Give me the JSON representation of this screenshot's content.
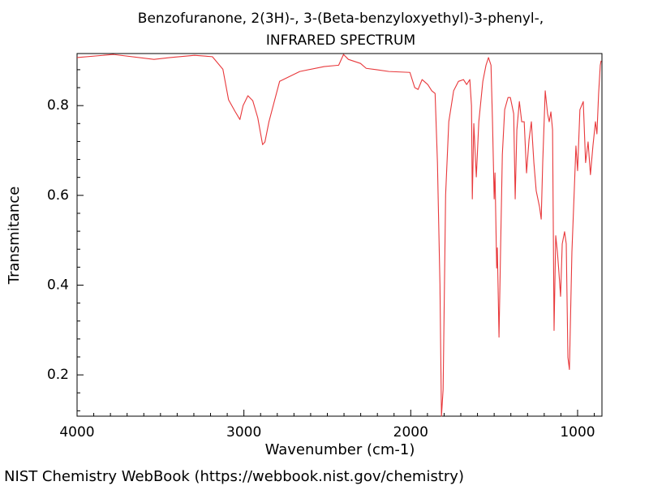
{
  "chart_data": {
    "type": "line",
    "title": "Benzofuranone, 2(3H)-, 3-(Beta-benzyloxyethyl)-3-phenyl-,",
    "subtitle": "INFRARED SPECTRUM",
    "x_label": "Wavenumber (cm-1)",
    "y_label": "Transmitance",
    "color": "#e8383b",
    "xlim": [
      4000,
      854
    ],
    "ylim": [
      0.108,
      0.916
    ],
    "xticks": [
      4000,
      3000,
      2000,
      1000
    ],
    "yticks": [
      0.2,
      0.4,
      0.6,
      0.8
    ],
    "xminorticks": [
      3900,
      3800,
      3700,
      3600,
      3500,
      3400,
      3300,
      3200,
      3100,
      2900,
      2800,
      2700,
      2600,
      2500,
      2400,
      2300,
      2200,
      2100,
      1900,
      1800,
      1700,
      1600,
      1500,
      1400,
      1300,
      1200,
      1100,
      900
    ],
    "yminorticks": [
      0.12,
      0.16,
      0.24,
      0.28,
      0.32,
      0.36,
      0.44,
      0.48,
      0.52,
      0.56,
      0.64,
      0.68,
      0.72,
      0.76,
      0.84,
      0.88
    ],
    "x": [
      4000,
      3782,
      3539,
      3442,
      3296,
      3189,
      3126,
      3092,
      3053,
      3024,
      3005,
      2976,
      2947,
      2917,
      2888,
      2874,
      2850,
      2786,
      2665,
      2519,
      2432,
      2403,
      2374,
      2301,
      2267,
      2204,
      2131,
      2005,
      1976,
      1956,
      1932,
      1898,
      1874,
      1854,
      1840,
      1825,
      1816,
      1806,
      1791,
      1772,
      1743,
      1714,
      1684,
      1665,
      1646,
      1636,
      1631,
      1622,
      1607,
      1592,
      1568,
      1549,
      1534,
      1519,
      1510,
      1500,
      1495,
      1485,
      1481,
      1471,
      1461,
      1451,
      1437,
      1417,
      1403,
      1383,
      1374,
      1364,
      1349,
      1335,
      1320,
      1306,
      1291,
      1277,
      1262,
      1248,
      1228,
      1218,
      1209,
      1194,
      1180,
      1170,
      1160,
      1150,
      1141,
      1131,
      1121,
      1112,
      1102,
      1092,
      1078,
      1068,
      1058,
      1049,
      1034,
      1020,
      1010,
      1000,
      986,
      966,
      952,
      937,
      923,
      908,
      893,
      884,
      874,
      864,
      859
    ],
    "values": [
      0.907,
      0.914,
      0.903,
      0.907,
      0.912,
      0.909,
      0.881,
      0.813,
      0.787,
      0.769,
      0.8,
      0.822,
      0.811,
      0.773,
      0.713,
      0.719,
      0.764,
      0.854,
      0.876,
      0.887,
      0.89,
      0.914,
      0.903,
      0.894,
      0.883,
      0.88,
      0.876,
      0.874,
      0.84,
      0.836,
      0.858,
      0.847,
      0.833,
      0.827,
      0.673,
      0.402,
      0.108,
      0.167,
      0.601,
      0.764,
      0.833,
      0.854,
      0.858,
      0.847,
      0.858,
      0.8,
      0.592,
      0.76,
      0.641,
      0.764,
      0.854,
      0.89,
      0.907,
      0.89,
      0.764,
      0.592,
      0.65,
      0.438,
      0.483,
      0.284,
      0.492,
      0.691,
      0.791,
      0.818,
      0.818,
      0.782,
      0.592,
      0.746,
      0.809,
      0.764,
      0.764,
      0.65,
      0.724,
      0.764,
      0.673,
      0.61,
      0.574,
      0.547,
      0.673,
      0.833,
      0.782,
      0.764,
      0.786,
      0.746,
      0.299,
      0.51,
      0.474,
      0.429,
      0.375,
      0.492,
      0.519,
      0.492,
      0.239,
      0.212,
      0.474,
      0.61,
      0.71,
      0.655,
      0.791,
      0.809,
      0.673,
      0.719,
      0.646,
      0.71,
      0.764,
      0.737,
      0.827,
      0.89,
      0.9
    ]
  },
  "footer": "NIST Chemistry WebBook (https://webbook.nist.gov/chemistry)"
}
